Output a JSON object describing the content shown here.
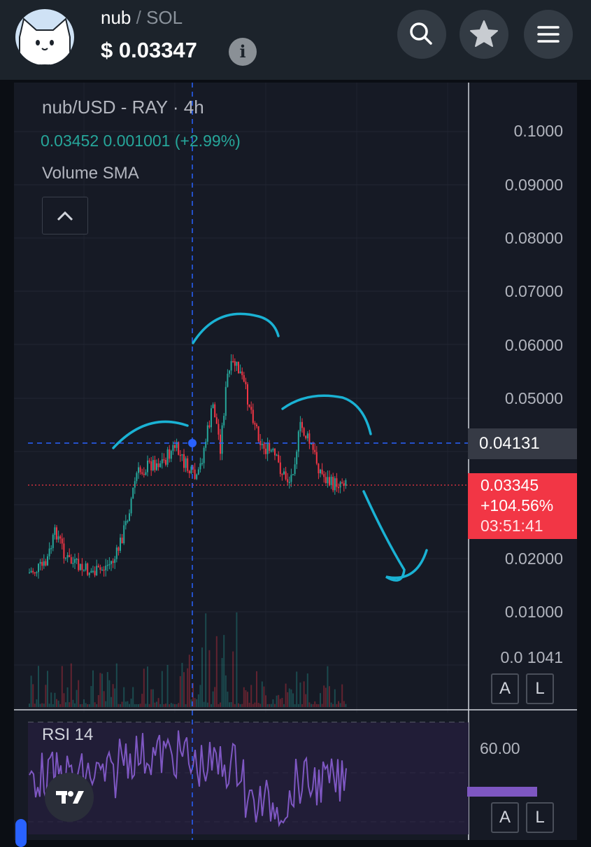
{
  "header": {
    "token": "nub",
    "separator": "/",
    "quote": "SOL",
    "price": "$ 0.03347",
    "info_icon": "info-icon",
    "buttons": [
      "search-icon",
      "star-icon",
      "menu-icon"
    ]
  },
  "chart": {
    "title": "nub/USD - RAY · 4h",
    "ohlc": "0.03452  0.001001 (+2.99%)",
    "volume_label": "Volume SMA",
    "collapse_icon": "chevron-up-icon",
    "y_axis": [
      "0.1000",
      "0.09000",
      "0.08000",
      "0.07000",
      "0.06000",
      "0.05000",
      "0.02000",
      "0.01000",
      "0.0 1041"
    ],
    "hover_price": "0.04131",
    "current_price": {
      "price": "0.03345",
      "change": "+104.56%",
      "countdown": "03:51:41"
    },
    "scale_buttons": [
      "A",
      "L"
    ],
    "colors": {
      "up": "#26a69a",
      "down": "#f23645",
      "crosshair": "#2962ff",
      "annotation": "#1ab2d4",
      "rsi": "#7e57c2"
    }
  },
  "rsi": {
    "label": "RSI 14",
    "level": "60.00",
    "scale_buttons": [
      "A",
      "L"
    ]
  }
}
